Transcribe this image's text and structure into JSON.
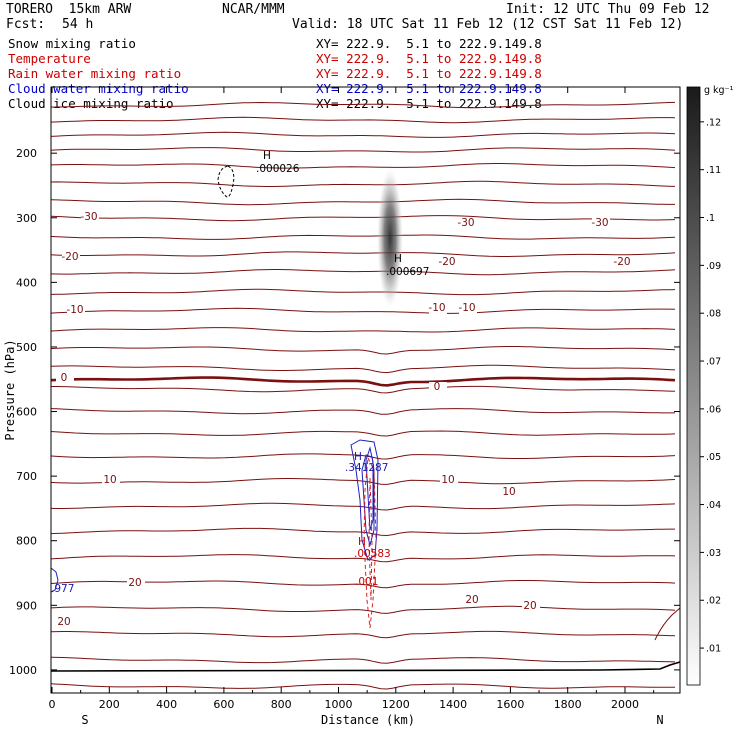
{
  "header": {
    "model": "TORERO  15km ARW",
    "org": "NCAR/MMM",
    "init": "Init: 12 UTC Thu 09 Feb 12",
    "fcst_label": "Fcst:",
    "fcst_value": "54 h",
    "valid": "Valid: 18 UTC Sat 11 Feb 12 (12 CST Sat 11 Feb 12)"
  },
  "fields": [
    {
      "name": "Snow mixing ratio",
      "xy": "XY= 222.9.  5.1 to 222.9.149.8",
      "color": "#000000"
    },
    {
      "name": "Temperature",
      "xy": "XY= 222.9.  5.1 to 222.9.149.8",
      "color": "#cc0000"
    },
    {
      "name": "Rain water mixing ratio",
      "xy": "XY= 222.9.  5.1 to 222.9.149.8",
      "color": "#cc0000"
    },
    {
      "name": "Cloud water mixing ratio",
      "xy": "XY= 222.9.  5.1 to 222.9.149.8",
      "color": "#0000cc"
    },
    {
      "name": "Cloud ice mixing ratio",
      "xy": "XY= 222.9.  5.1 to 222.9.149.8",
      "color": "#000000"
    }
  ],
  "chart_data": {
    "type": "contour",
    "xlabel": "Distance (km)",
    "ylabel": "Pressure (hPa)",
    "xlim": [
      0,
      2180
    ],
    "ylim": [
      1050,
      100
    ],
    "x_ticks": [
      "0",
      "200",
      "400",
      "600",
      "800",
      "1000",
      "1200",
      "1400",
      "1600",
      "1800",
      "2000"
    ],
    "y_ticks": [
      "200",
      "300",
      "400",
      "500",
      "600",
      "700",
      "800",
      "900",
      "1000"
    ],
    "endpoints": {
      "left": "S",
      "right": "N"
    },
    "colorbar": {
      "unit": "g kg⁻¹",
      "ticks": [
        ".01",
        ".02",
        ".03",
        ".04",
        ".05",
        ".06",
        ".07",
        ".08",
        ".09",
        ".1",
        ".11",
        ".12"
      ]
    },
    "temperature_labels": [
      "-30",
      "-30",
      "-30",
      "-20",
      "-20",
      "-20",
      "-10",
      "-10",
      "-10",
      "0",
      "0",
      "10",
      "10",
      "10",
      "20",
      "20",
      "20",
      "20"
    ],
    "annotations": [
      {
        "marker": "H",
        "value": ".000026",
        "field": "Cloud ice mixing ratio"
      },
      {
        "marker": "H",
        "value": ".000697",
        "field": "Snow mixing ratio"
      },
      {
        "marker": "H",
        "value": ".341287",
        "field": "Cloud water mixing ratio"
      },
      {
        "marker": "H",
        "value": ".00583",
        "field": "Rain water mixing ratio"
      },
      {
        "marker": "",
        "value": ".001",
        "field": "Rain water mixing ratio"
      },
      {
        "marker": "",
        "value": ".977",
        "field": "Cloud water mixing ratio"
      }
    ]
  }
}
